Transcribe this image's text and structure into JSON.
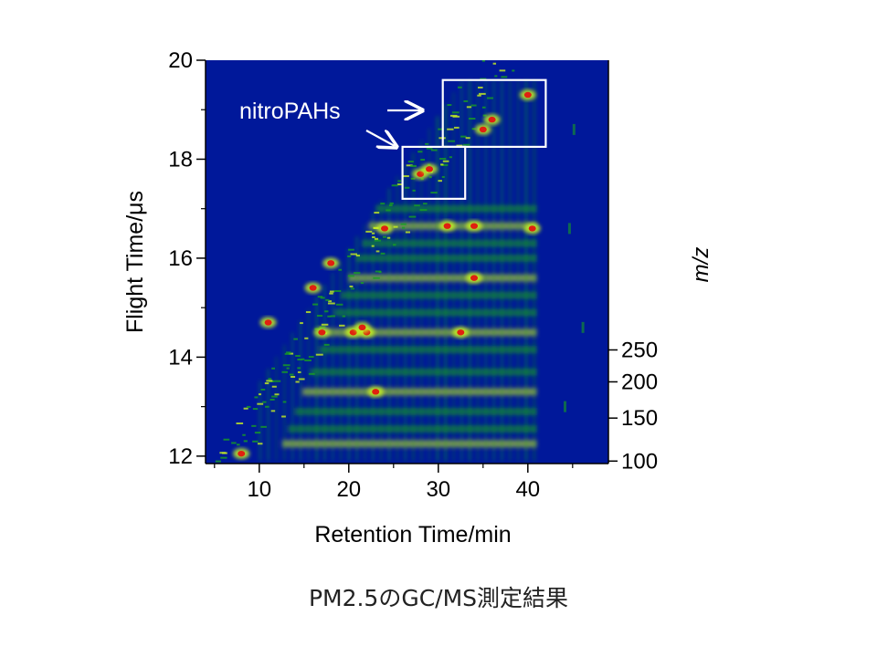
{
  "chart_data": {
    "type": "heatmap",
    "xlabel": "Retention Time/min",
    "ylabel_left": "Flight Time/μs",
    "ylabel_right": "m/z",
    "xlim": [
      4,
      49
    ],
    "ylim_left": [
      11.85,
      20
    ],
    "x_ticks": [
      10,
      20,
      30,
      40
    ],
    "y_ticks_left": [
      12,
      14,
      16,
      18,
      20
    ],
    "y_ticks_right": [
      100,
      150,
      200,
      250
    ],
    "annotation": "nitroPAHs",
    "highlight_regions": [
      {
        "x": [
          26,
          33
        ],
        "y": [
          17.2,
          18.25
        ]
      },
      {
        "x": [
          30.5,
          42
        ],
        "y": [
          18.25,
          19.6
        ]
      }
    ],
    "peaks": [
      {
        "x": 8,
        "y": 12.05
      },
      {
        "x": 11,
        "y": 14.7
      },
      {
        "x": 17,
        "y": 14.5
      },
      {
        "x": 20.5,
        "y": 14.5
      },
      {
        "x": 22,
        "y": 14.5
      },
      {
        "x": 23,
        "y": 13.3
      },
      {
        "x": 24,
        "y": 16.6
      },
      {
        "x": 28,
        "y": 17.7
      },
      {
        "x": 29,
        "y": 17.8
      },
      {
        "x": 31,
        "y": 16.65
      },
      {
        "x": 32.5,
        "y": 14.5
      },
      {
        "x": 34,
        "y": 15.6
      },
      {
        "x": 34,
        "y": 16.65
      },
      {
        "x": 35,
        "y": 18.6
      },
      {
        "x": 36,
        "y": 18.8
      },
      {
        "x": 40.5,
        "y": 16.6
      },
      {
        "x": 40,
        "y": 19.3
      },
      {
        "x": 21.5,
        "y": 14.6
      },
      {
        "x": 18,
        "y": 15.9
      },
      {
        "x": 16,
        "y": 15.4
      }
    ],
    "colors": {
      "background": "#00189a",
      "low": "#18a020",
      "mid": "#c8f020",
      "high": "#e02010",
      "box": "#ffffff"
    }
  },
  "caption": "PM2.5のGC/MS測定結果"
}
